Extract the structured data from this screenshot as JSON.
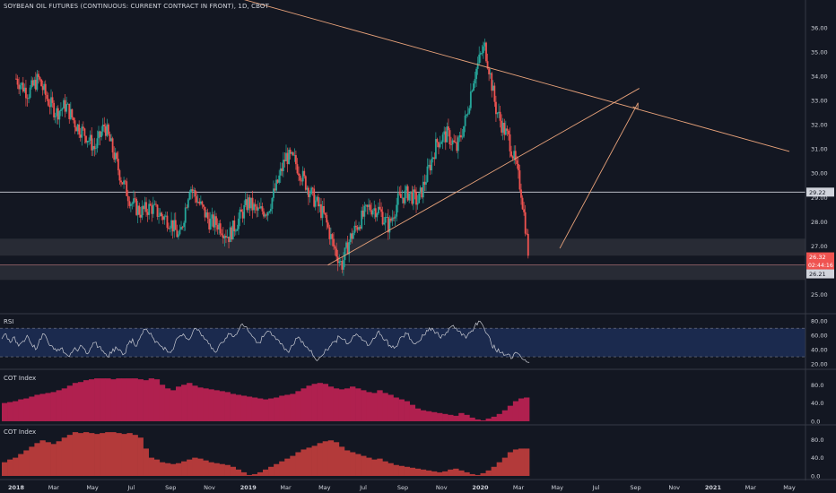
{
  "header": {
    "title": "SOYBEAN OIL FUTURES (CONTINUOUS: CURRENT CONTRACT IN FRONT), 1D, CBOT"
  },
  "colors": {
    "background": "#131722",
    "up": "#26a69a",
    "down": "#ef5350",
    "trendline": "#e8a27a",
    "zone": "#2b2e37",
    "rsi_band": "#1b2a4e",
    "cot1": "#b0204f",
    "cot2": "#b33a3a",
    "axis_text": "#d1d4dc",
    "current_price_bg": "#ef5350"
  },
  "chart_data": [
    {
      "type": "candlestick",
      "name": "price",
      "x_axis_labels": [
        "2018",
        "Mar",
        "May",
        "Jul",
        "Sep",
        "Nov",
        "2019",
        "Mar",
        "May",
        "Jul",
        "Sep",
        "Nov",
        "2020",
        "Mar",
        "May",
        "Jul",
        "Sep",
        "Nov",
        "2021",
        "Mar",
        "May"
      ],
      "x_axis_start": "2018-01-01",
      "x_axis_end": "2021-05-01",
      "y_ticks": [
        36.0,
        35.0,
        34.0,
        33.0,
        32.0,
        31.0,
        30.0,
        29.0,
        28.0,
        27.0,
        26.0,
        25.0
      ],
      "ylim": [
        24.5,
        36.7
      ],
      "close_series": [
        [
          "2018-01-01",
          33.9
        ],
        [
          "2018-01-20",
          33.3
        ],
        [
          "2018-02-05",
          33.9
        ],
        [
          "2018-02-20",
          33.0
        ],
        [
          "2018-03-05",
          32.5
        ],
        [
          "2018-03-20",
          32.8
        ],
        [
          "2018-04-05",
          32.0
        ],
        [
          "2018-04-20",
          31.6
        ],
        [
          "2018-05-05",
          31.0
        ],
        [
          "2018-05-20",
          32.0
        ],
        [
          "2018-06-01",
          31.0
        ],
        [
          "2018-06-15",
          29.8
        ],
        [
          "2018-07-01",
          28.8
        ],
        [
          "2018-07-15",
          28.4
        ],
        [
          "2018-08-01",
          28.6
        ],
        [
          "2018-08-15",
          28.3
        ],
        [
          "2018-09-01",
          28.0
        ],
        [
          "2018-09-15",
          27.3
        ],
        [
          "2018-10-01",
          29.5
        ],
        [
          "2018-10-15",
          28.8
        ],
        [
          "2018-11-01",
          28.0
        ],
        [
          "2018-11-15",
          27.9
        ],
        [
          "2018-12-01",
          27.4
        ],
        [
          "2018-12-15",
          28.0
        ],
        [
          "2019-01-01",
          28.8
        ],
        [
          "2019-01-15",
          28.4
        ],
        [
          "2019-02-01",
          28.5
        ],
        [
          "2019-02-15",
          29.5
        ],
        [
          "2019-03-01",
          30.7
        ],
        [
          "2019-03-15",
          30.5
        ],
        [
          "2019-04-01",
          29.6
        ],
        [
          "2019-04-15",
          28.9
        ],
        [
          "2019-05-01",
          28.2
        ],
        [
          "2019-05-15",
          27.0
        ],
        [
          "2019-05-28",
          26.2
        ],
        [
          "2019-06-10",
          27.3
        ],
        [
          "2019-06-25",
          28.0
        ],
        [
          "2019-07-10",
          28.6
        ],
        [
          "2019-07-25",
          28.5
        ],
        [
          "2019-08-10",
          27.8
        ],
        [
          "2019-08-25",
          28.9
        ],
        [
          "2019-09-10",
          29.2
        ],
        [
          "2019-09-25",
          28.8
        ],
        [
          "2019-10-10",
          30.0
        ],
        [
          "2019-10-25",
          31.3
        ],
        [
          "2019-11-10",
          31.6
        ],
        [
          "2019-11-25",
          31.0
        ],
        [
          "2019-12-10",
          32.3
        ],
        [
          "2019-12-20",
          33.8
        ],
        [
          "2020-01-02",
          34.9
        ],
        [
          "2020-01-08",
          35.2
        ],
        [
          "2020-01-15",
          34.3
        ],
        [
          "2020-01-25",
          32.7
        ],
        [
          "2020-02-05",
          31.9
        ],
        [
          "2020-02-15",
          31.4
        ],
        [
          "2020-02-25",
          30.4
        ],
        [
          "2020-03-05",
          29.3
        ],
        [
          "2020-03-12",
          27.8
        ],
        [
          "2020-03-18",
          26.32
        ]
      ],
      "current_price": "26.32",
      "countdown": "02:44:16",
      "low_label": "26.21",
      "horizontal_line_label": "29.22",
      "horizontal_line": 29.22,
      "support_zones": [
        [
          26.6,
          27.3
        ],
        [
          25.6,
          26.2
        ]
      ],
      "trendlines": [
        {
          "from": [
            "2019-05-06",
            26.21
          ],
          "to": [
            "2020-09-07",
            33.5
          ]
        },
        {
          "from": [
            "2018-12-20",
            37.2
          ],
          "to": [
            "2021-05-01",
            30.9
          ]
        }
      ],
      "arrow": {
        "from": [
          "2020-05-05",
          26.9
        ],
        "to": [
          "2020-09-05",
          32.9
        ]
      }
    },
    {
      "type": "line",
      "name": "RSI",
      "label": "RSI",
      "y_ticks": [
        80.0,
        60.0,
        40.0,
        20.0
      ],
      "ylim": [
        15,
        84
      ],
      "band": [
        30,
        70
      ],
      "values": [
        55,
        62,
        50,
        58,
        45,
        52,
        60,
        48,
        40,
        55,
        62,
        50,
        45,
        38,
        42,
        35,
        30,
        40,
        38,
        45,
        35,
        42,
        50,
        44,
        38,
        30,
        35,
        44,
        40,
        34,
        48,
        55,
        45,
        60,
        68,
        62,
        55,
        50,
        44,
        40,
        36,
        48,
        58,
        62,
        55,
        60,
        70,
        64,
        55,
        48,
        42,
        38,
        50,
        56,
        62,
        58,
        66,
        76,
        72,
        62,
        55,
        50,
        58,
        66,
        60,
        54,
        48,
        40,
        36,
        46,
        56,
        50,
        44,
        38,
        30,
        26,
        32,
        40,
        46,
        52,
        58,
        54,
        48,
        56,
        62,
        58,
        52,
        46,
        56,
        64,
        60,
        54,
        46,
        42,
        50,
        58,
        62,
        54,
        48,
        52,
        60,
        66,
        70,
        64,
        56,
        60,
        70,
        74,
        66,
        60,
        56,
        64,
        72,
        80,
        74,
        62,
        48,
        40,
        36,
        32,
        34,
        28,
        36,
        30,
        26,
        22
      ]
    },
    {
      "type": "area",
      "name": "COT Index 1",
      "label": "COT Index",
      "y_ticks": [
        80.0,
        40.0,
        0.0
      ],
      "ylim": [
        -4,
        108
      ],
      "values": [
        40,
        42,
        44,
        48,
        50,
        54,
        58,
        60,
        62,
        64,
        68,
        72,
        78,
        84,
        86,
        90,
        92,
        94,
        94,
        94,
        92,
        94,
        94,
        94,
        94,
        92,
        90,
        94,
        92,
        80,
        72,
        68,
        76,
        80,
        84,
        78,
        74,
        72,
        70,
        68,
        66,
        64,
        60,
        58,
        56,
        54,
        52,
        50,
        48,
        50,
        52,
        56,
        58,
        60,
        66,
        72,
        78,
        82,
        84,
        82,
        76,
        72,
        70,
        72,
        76,
        72,
        68,
        64,
        62,
        68,
        62,
        58,
        52,
        48,
        44,
        36,
        28,
        24,
        22,
        20,
        18,
        16,
        14,
        12,
        18,
        14,
        8,
        4,
        2,
        6,
        10,
        16,
        24,
        34,
        44,
        50,
        52
      ]
    },
    {
      "type": "area",
      "name": "COT Index 2",
      "label": "COT Index",
      "y_ticks": [
        80.0,
        40.0,
        0.0
      ],
      "ylim": [
        -4,
        108
      ],
      "values": [
        30,
        36,
        40,
        48,
        56,
        64,
        72,
        78,
        74,
        70,
        76,
        84,
        90,
        96,
        94,
        96,
        94,
        92,
        94,
        96,
        96,
        94,
        92,
        94,
        90,
        84,
        60,
        40,
        36,
        30,
        28,
        26,
        28,
        32,
        36,
        40,
        38,
        34,
        30,
        28,
        26,
        24,
        20,
        14,
        8,
        2,
        4,
        8,
        14,
        20,
        26,
        32,
        38,
        44,
        52,
        58,
        62,
        66,
        72,
        76,
        78,
        74,
        64,
        56,
        52,
        48,
        44,
        40,
        36,
        38,
        32,
        28,
        24,
        22,
        20,
        18,
        16,
        14,
        12,
        10,
        8,
        10,
        14,
        16,
        12,
        8,
        4,
        2,
        6,
        12,
        20,
        30,
        40,
        52,
        58,
        60,
        60
      ]
    }
  ],
  "time_axis": {
    "labels": [
      "2018",
      "Mar",
      "May",
      "Jul",
      "Sep",
      "Nov",
      "2019",
      "Mar",
      "May",
      "Jul",
      "Sep",
      "Nov",
      "2020",
      "Mar",
      "May",
      "Jul",
      "Sep",
      "Nov",
      "2021",
      "Mar",
      "May"
    ]
  }
}
